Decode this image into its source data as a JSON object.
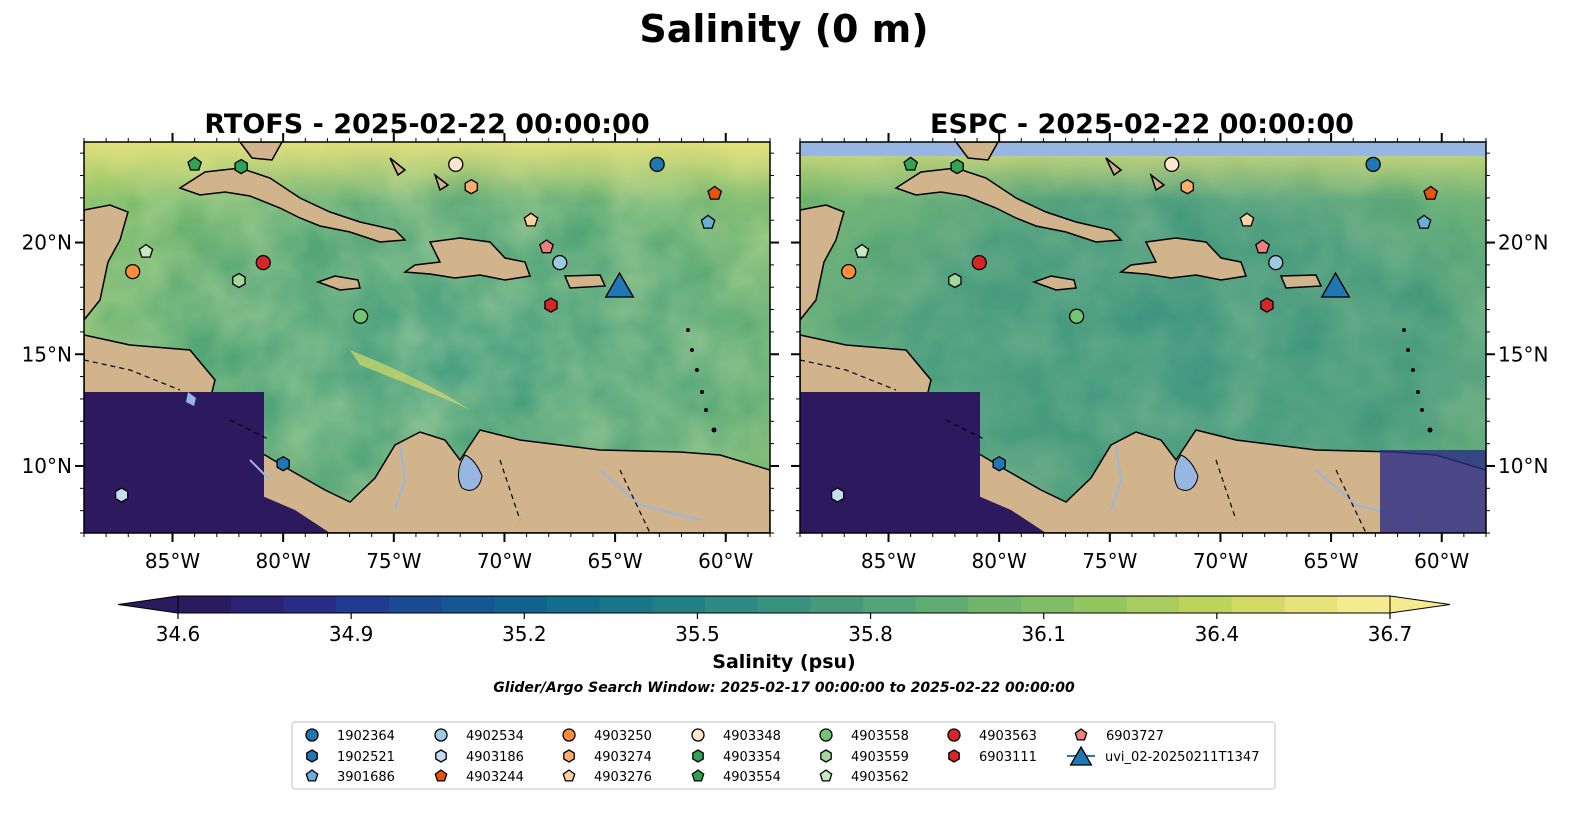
{
  "figure": {
    "title": "Salinity (0 m)",
    "search_window": "Glider/Argo Search Window: 2025-02-17 00:00:00 to 2025-02-22 00:00:00"
  },
  "panels": [
    {
      "id": "rtofs",
      "title": "RTOFS - 2025-02-22 00:00:00"
    },
    {
      "id": "espc",
      "title": "ESPC - 2025-02-22 00:00:00"
    }
  ],
  "map": {
    "lon_range": [
      -89,
      -58
    ],
    "lat_range": [
      7,
      24.5
    ],
    "lon_ticks": [
      "85°W",
      "80°W",
      "75°W",
      "70°W",
      "65°W",
      "60°W"
    ],
    "lat_ticks": [
      "20°N",
      "15°N",
      "10°N"
    ],
    "colors": {
      "land": "#d2b48c",
      "lake": "#97b6e1",
      "ocean_mid": "#3d9a84",
      "deep": "#2d1a5e"
    }
  },
  "colorbar": {
    "label": "Salinity (psu)",
    "ticks": [
      "34.6",
      "34.9",
      "35.2",
      "35.5",
      "35.8",
      "36.1",
      "36.4",
      "36.7"
    ],
    "colormap": "haline",
    "extend": "both",
    "colors": [
      "#2a1a5e",
      "#2c2273",
      "#2a2d86",
      "#223b91",
      "#1a4a92",
      "#145791",
      "#12628f",
      "#136d8c",
      "#197689",
      "#237f86",
      "#2e8883",
      "#3a917f",
      "#46997b",
      "#52a377",
      "#5fac72",
      "#6fb56c",
      "#80bd66",
      "#93c561",
      "#a8cc5e",
      "#bed35e",
      "#d4da66",
      "#e7e27a",
      "#f5ea8f"
    ]
  },
  "legend": {
    "columns": [
      [
        {
          "label": "1902364",
          "marker": "circle",
          "color": "#1f77b4"
        },
        {
          "label": "1902521",
          "marker": "hexagon",
          "color": "#1f77b4"
        },
        {
          "label": "3901686",
          "marker": "pentagon",
          "color": "#6baed6"
        }
      ],
      [
        {
          "label": "4902534",
          "marker": "circle",
          "color": "#9ecae1"
        },
        {
          "label": "4903186",
          "marker": "hexagon",
          "color": "#c6dbef"
        },
        {
          "label": "4903244",
          "marker": "pentagon",
          "color": "#e6550d"
        }
      ],
      [
        {
          "label": "4903250",
          "marker": "circle",
          "color": "#fd8d3c"
        },
        {
          "label": "4903274",
          "marker": "hexagon",
          "color": "#fdae6b"
        },
        {
          "label": "4903276",
          "marker": "pentagon",
          "color": "#fdd0a2"
        }
      ],
      [
        {
          "label": "4903348",
          "marker": "circle",
          "color": "#fee6ce"
        },
        {
          "label": "4903354",
          "marker": "hexagon",
          "color": "#31a354"
        },
        {
          "label": "4903554",
          "marker": "pentagon",
          "color": "#31a354"
        }
      ],
      [
        {
          "label": "4903558",
          "marker": "circle",
          "color": "#74c476"
        },
        {
          "label": "4903559",
          "marker": "hexagon",
          "color": "#a1d99b"
        },
        {
          "label": "4903562",
          "marker": "pentagon",
          "color": "#c7e9c0"
        }
      ],
      [
        {
          "label": "4903563",
          "marker": "circle",
          "color": "#d62728"
        },
        {
          "label": "6903111",
          "marker": "hexagon",
          "color": "#d62728"
        }
      ],
      [
        {
          "label": "6903727",
          "marker": "pentagon",
          "color": "#f08080"
        },
        {
          "label": "uvi_02-20250211T1347",
          "marker": "triangle",
          "color": "#1f77b4"
        }
      ]
    ]
  },
  "floats": [
    {
      "id": "1902364",
      "marker": "circle",
      "color": "#1f77b4",
      "lon": -63.1,
      "lat": 23.5
    },
    {
      "id": "1902521",
      "marker": "hexagon",
      "color": "#1f77b4",
      "lon": -80.0,
      "lat": 10.1
    },
    {
      "id": "3901686",
      "marker": "pentagon",
      "color": "#6baed6",
      "lon": -60.8,
      "lat": 20.9
    },
    {
      "id": "4902534",
      "marker": "circle",
      "color": "#9ecae1",
      "lon": -67.5,
      "lat": 19.1
    },
    {
      "id": "4903186",
      "marker": "hexagon",
      "color": "#c6dbef",
      "lon": -87.3,
      "lat": 8.7
    },
    {
      "id": "4903244",
      "marker": "pentagon",
      "color": "#e6550d",
      "lon": -60.5,
      "lat": 22.2
    },
    {
      "id": "4903250",
      "marker": "circle",
      "color": "#fd8d3c",
      "lon": -86.8,
      "lat": 18.7
    },
    {
      "id": "4903274",
      "marker": "hexagon",
      "color": "#fdae6b",
      "lon": -71.5,
      "lat": 22.5
    },
    {
      "id": "4903276",
      "marker": "pentagon",
      "color": "#fdd0a2",
      "lon": -68.8,
      "lat": 21.0
    },
    {
      "id": "4903348",
      "marker": "circle",
      "color": "#fee6ce",
      "lon": -72.2,
      "lat": 23.5
    },
    {
      "id": "4903354",
      "marker": "hexagon",
      "color": "#31a354",
      "lon": -81.9,
      "lat": 23.4
    },
    {
      "id": "4903554",
      "marker": "pentagon",
      "color": "#31a354",
      "lon": -84.0,
      "lat": 23.5
    },
    {
      "id": "4903558",
      "marker": "circle",
      "color": "#74c476",
      "lon": -76.5,
      "lat": 16.7
    },
    {
      "id": "4903559",
      "marker": "hexagon",
      "color": "#a1d99b",
      "lon": -82.0,
      "lat": 18.3
    },
    {
      "id": "4903562",
      "marker": "pentagon",
      "color": "#c7e9c0",
      "lon": -86.2,
      "lat": 19.6
    },
    {
      "id": "4903563",
      "marker": "circle",
      "color": "#d62728",
      "lon": -80.9,
      "lat": 19.1
    },
    {
      "id": "6903111",
      "marker": "hexagon",
      "color": "#d62728",
      "lon": -67.9,
      "lat": 17.2
    },
    {
      "id": "6903727",
      "marker": "pentagon",
      "color": "#f08080",
      "lon": -68.1,
      "lat": 19.8
    },
    {
      "id": "uvi_02-20250211T1347",
      "marker": "triangle",
      "color": "#1f77b4",
      "lon": -64.8,
      "lat": 18.1
    }
  ]
}
